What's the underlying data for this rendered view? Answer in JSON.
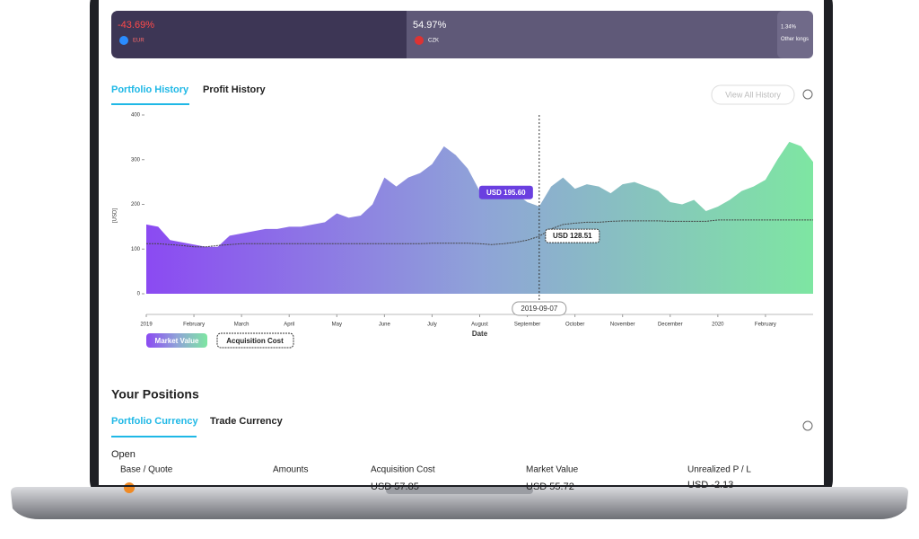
{
  "currency_bar": [
    {
      "pct": "-43.69%",
      "code": "EUR"
    },
    {
      "pct": "54.97%",
      "code": "CZK"
    },
    {
      "pct": "1.34%",
      "code": "Other longs"
    }
  ],
  "tabs": [
    "Portfolio History",
    "Profit History"
  ],
  "view_all": "View All History",
  "chart_data": {
    "type": "area",
    "ylabel": "[USD]",
    "xlabel": "Date",
    "ylim": [
      0,
      400
    ],
    "yticks": [
      0,
      100,
      200,
      300,
      400
    ],
    "xlim": [
      0,
      14
    ],
    "xticks": [
      {
        "value": 0,
        "label": "2019"
      },
      {
        "value": 1,
        "label": "February"
      },
      {
        "value": 2,
        "label": "March"
      },
      {
        "value": 3,
        "label": "April"
      },
      {
        "value": 4,
        "label": "May"
      },
      {
        "value": 5,
        "label": "June"
      },
      {
        "value": 6,
        "label": "July"
      },
      {
        "value": 7,
        "label": "August"
      },
      {
        "value": 8,
        "label": "September"
      },
      {
        "value": 9,
        "label": "October"
      },
      {
        "value": 10,
        "label": "November"
      },
      {
        "value": 11,
        "label": "December"
      },
      {
        "value": 12,
        "label": "2020"
      },
      {
        "value": 13,
        "label": "February"
      }
    ],
    "x": [
      0,
      0.25,
      0.5,
      0.75,
      1,
      1.25,
      1.5,
      1.75,
      2,
      2.25,
      2.5,
      2.75,
      3,
      3.25,
      3.5,
      3.75,
      4,
      4.25,
      4.5,
      4.75,
      5,
      5.25,
      5.5,
      5.75,
      6,
      6.25,
      6.5,
      6.75,
      7,
      7.25,
      7.5,
      7.75,
      8,
      8.25,
      8.5,
      8.75,
      9,
      9.25,
      9.5,
      9.75,
      10,
      10.25,
      10.5,
      10.75,
      11,
      11.25,
      11.5,
      11.75,
      12,
      12.25,
      12.5,
      12.75,
      13,
      13.25,
      13.5,
      13.75,
      14
    ],
    "series": [
      {
        "name": "Market Value",
        "color": "#7b4ae8",
        "values": [
          155,
          150,
          120,
          115,
          110,
          105,
          105,
          130,
          135,
          140,
          145,
          145,
          150,
          150,
          155,
          160,
          180,
          170,
          175,
          200,
          260,
          240,
          260,
          270,
          290,
          330,
          310,
          280,
          230,
          215,
          220,
          225,
          205,
          195.6,
          240,
          260,
          235,
          245,
          240,
          225,
          245,
          250,
          240,
          230,
          205,
          200,
          210,
          185,
          195,
          210,
          230,
          240,
          255,
          300,
          340,
          330,
          295
        ]
      },
      {
        "name": "Acquisition Cost",
        "color": "#444444",
        "values": [
          112,
          112,
          110,
          108,
          105,
          105,
          108,
          110,
          112,
          112,
          112,
          112,
          112,
          112,
          112,
          112,
          112,
          112,
          112,
          112,
          112,
          112,
          112,
          112,
          113,
          113,
          113,
          113,
          112,
          110,
          112,
          115,
          120,
          128.51,
          145,
          155,
          158,
          160,
          160,
          162,
          163,
          163,
          163,
          163,
          162,
          162,
          162,
          162,
          165,
          165,
          165,
          165,
          165,
          165,
          165,
          165,
          165
        ]
      }
    ],
    "crosshair_x": 8.25,
    "crosshair_label": "2019-09-07",
    "value_labels": [
      "USD 195.60",
      "USD 128.51"
    ]
  },
  "positions": {
    "title": "Your Positions",
    "tabs": [
      "Portfolio Currency",
      "Trade Currency"
    ],
    "section": "Open",
    "headers": [
      "Base / Quote",
      "Amounts",
      "Acquisition Cost",
      "Market Value",
      "Unrealized P / L"
    ],
    "row": [
      "USD 57.85",
      "USD 55.72",
      "USD -2.13"
    ]
  }
}
